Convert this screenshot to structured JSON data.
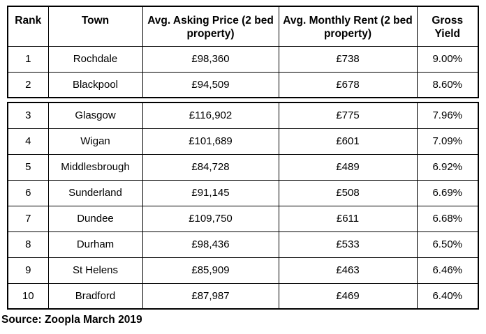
{
  "chart_data": {
    "type": "table",
    "columns": [
      "Rank",
      "Town",
      "Avg. Asking Price (2 bed property)",
      "Avg. Monthly Rent (2 bed property)",
      "Gross Yield"
    ],
    "rows": [
      [
        "1",
        "Rochdale",
        "£98,360",
        "£738",
        "9.00%"
      ],
      [
        "2",
        "Blackpool",
        "£94,509",
        "£678",
        "8.60%"
      ],
      [
        "3",
        "Glasgow",
        "£116,902",
        "£775",
        "7.96%"
      ],
      [
        "4",
        "Wigan",
        "£101,689",
        "£601",
        "7.09%"
      ],
      [
        "5",
        "Middlesbrough",
        "£84,728",
        "£489",
        "6.92%"
      ],
      [
        "6",
        "Sunderland",
        "£91,145",
        "£508",
        "6.69%"
      ],
      [
        "7",
        "Dundee",
        "£109,750",
        "£611",
        "6.68%"
      ],
      [
        "8",
        "Durham",
        "£98,436",
        "£533",
        "6.50%"
      ],
      [
        "9",
        "St Helens",
        "£85,909",
        "£463",
        "6.46%"
      ],
      [
        "10",
        "Bradford",
        "£87,987",
        "£469",
        "6.40%"
      ]
    ],
    "numeric": {
      "towns": [
        "Rochdale",
        "Blackpool",
        "Glasgow",
        "Wigan",
        "Middlesbrough",
        "Sunderland",
        "Dundee",
        "Durham",
        "St Helens",
        "Bradford"
      ],
      "avg_asking_price_gbp": [
        98360,
        94509,
        116902,
        101689,
        84728,
        91145,
        109750,
        98436,
        85909,
        87987
      ],
      "avg_monthly_rent_gbp": [
        738,
        678,
        775,
        601,
        489,
        508,
        611,
        533,
        463,
        469
      ],
      "gross_yield_percent": [
        9.0,
        8.6,
        7.96,
        7.09,
        6.92,
        6.69,
        6.68,
        6.5,
        6.46,
        6.4
      ]
    },
    "layout_hints": {
      "split_after_row": 2,
      "grid": "all-borders"
    },
    "source": "Source: Zoopla March 2019",
    "colors": {
      "border": "#000000",
      "text": "#000000",
      "background": "#ffffff"
    }
  }
}
